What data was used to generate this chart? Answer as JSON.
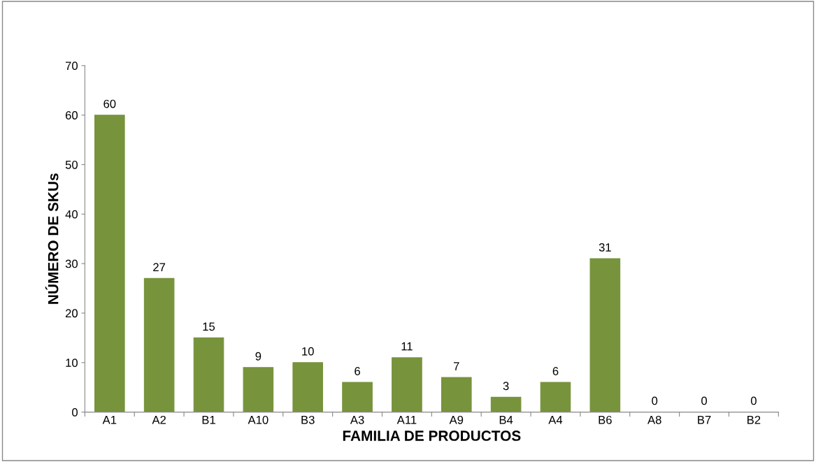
{
  "chart_data": {
    "type": "bar",
    "xlabel": "FAMILIA DE PRODUCTOS",
    "ylabel": "NÚMERO DE SKUs",
    "categories": [
      "A1",
      "A2",
      "B1",
      "A10",
      "B3",
      "A3",
      "A11",
      "A9",
      "B4",
      "A4",
      "B6",
      "A8",
      "B7",
      "B2"
    ],
    "values": [
      60,
      27,
      15,
      9,
      10,
      6,
      11,
      7,
      3,
      6,
      31,
      0,
      0,
      0
    ],
    "color": "#77933c",
    "ylim": [
      0,
      70
    ],
    "yticks": [
      0,
      10,
      20,
      30,
      40,
      50,
      60,
      70
    ],
    "grid": false,
    "data_labels": true
  }
}
